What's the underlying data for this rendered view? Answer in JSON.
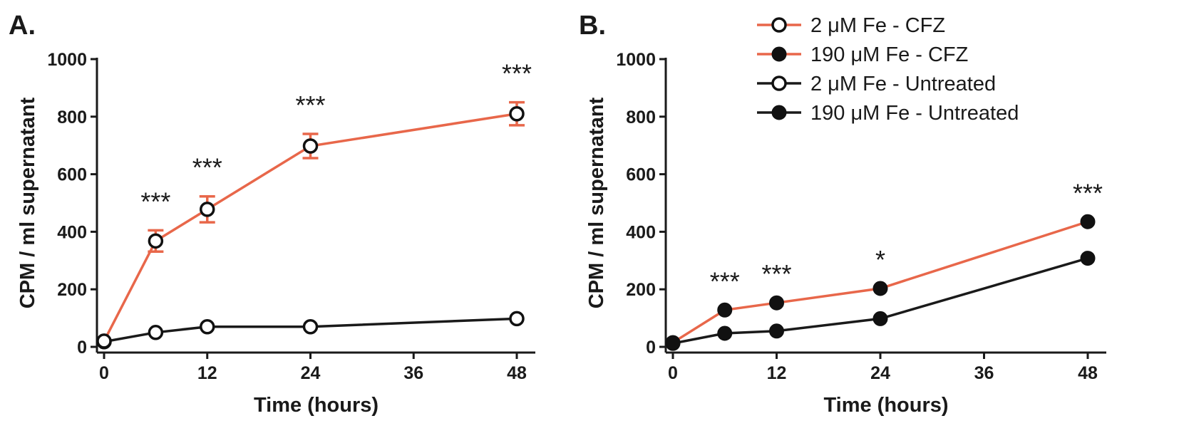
{
  "chart_data": [
    {
      "type": "line",
      "panel_label": "A.",
      "xlabel": "Time (hours)",
      "ylabel": "CPM / ml supernatant",
      "xlim": [
        0,
        48
      ],
      "ylim": [
        0,
        1000
      ],
      "xticks": [
        0,
        12,
        24,
        36,
        48
      ],
      "yticks": [
        0,
        200,
        400,
        600,
        800,
        1000
      ],
      "x": [
        0,
        6,
        12,
        24,
        48
      ],
      "series": [
        {
          "name": "2 μM Fe - CFZ",
          "color": "#e8674a",
          "marker": "open",
          "values": [
            20,
            368,
            478,
            698,
            810
          ],
          "errors": [
            0,
            37,
            45,
            42,
            40
          ]
        },
        {
          "name": "2 μM Fe - Untreated",
          "color": "#1a1a1a",
          "marker": "open",
          "values": [
            18,
            50,
            70,
            70,
            98
          ],
          "errors": [
            0,
            0,
            0,
            0,
            0
          ]
        }
      ],
      "annotations": [
        {
          "x": 6,
          "y": 368,
          "text": "***"
        },
        {
          "x": 12,
          "y": 478,
          "text": "***"
        },
        {
          "x": 24,
          "y": 698,
          "text": "***"
        },
        {
          "x": 48,
          "y": 810,
          "text": "***"
        }
      ]
    },
    {
      "type": "line",
      "panel_label": "B.",
      "xlabel": "Time (hours)",
      "ylabel": "CPM / ml supernatant",
      "xlim": [
        0,
        48
      ],
      "ylim": [
        0,
        1000
      ],
      "xticks": [
        0,
        12,
        24,
        36,
        48
      ],
      "yticks": [
        0,
        200,
        400,
        600,
        800,
        1000
      ],
      "x": [
        0,
        6,
        12,
        24,
        48
      ],
      "series": [
        {
          "name": "190 μM Fe - CFZ",
          "color": "#e8674a",
          "marker": "filled",
          "values": [
            15,
            128,
            153,
            203,
            435
          ],
          "errors": [
            0,
            0,
            0,
            0,
            0
          ]
        },
        {
          "name": "190 μM Fe - Untreated",
          "color": "#1a1a1a",
          "marker": "filled",
          "values": [
            12,
            47,
            55,
            98,
            308
          ],
          "errors": [
            0,
            0,
            0,
            0,
            0
          ]
        }
      ],
      "annotations": [
        {
          "x": 6,
          "y": 128,
          "text": "***"
        },
        {
          "x": 12,
          "y": 153,
          "text": "***"
        },
        {
          "x": 24,
          "y": 203,
          "text": "*"
        },
        {
          "x": 48,
          "y": 435,
          "text": "***"
        }
      ]
    }
  ],
  "legend": {
    "position": "top-right",
    "entries": [
      {
        "label": "2 μM Fe - CFZ",
        "color": "#e8674a",
        "marker": "open"
      },
      {
        "label": "190 μM Fe - CFZ",
        "color": "#e8674a",
        "marker": "filled"
      },
      {
        "label": "2 μM Fe - Untreated",
        "color": "#1a1a1a",
        "marker": "open"
      },
      {
        "label": "190 μM Fe - Untreated",
        "color": "#1a1a1a",
        "marker": "filled"
      }
    ]
  }
}
